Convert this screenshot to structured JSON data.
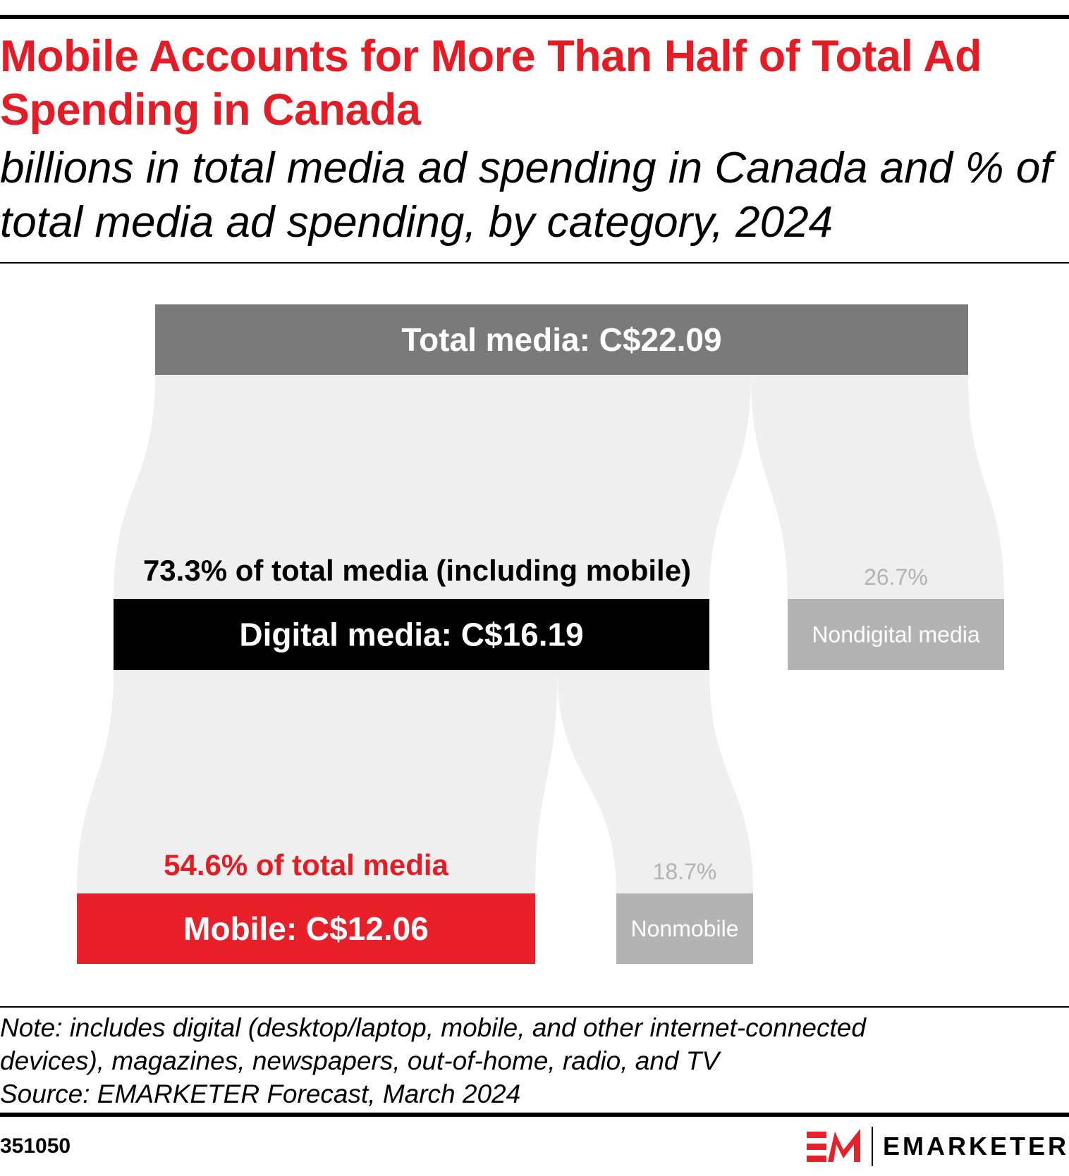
{
  "title": "Mobile Accounts for More Than Half of Total Ad Spending in Canada",
  "subtitle": "billions in total media ad spending in Canada and % of total media ad spending, by category, 2024",
  "chart_data": {
    "type": "sankey",
    "currency": "C$",
    "nodes": [
      {
        "id": "total",
        "label": "Total media: C$22.09",
        "value": 22.09,
        "color": "#7a7a7a"
      },
      {
        "id": "digital",
        "label": "Digital media: C$16.19",
        "value": 16.19,
        "share_label": "73.3% of total media (including mobile)",
        "share": 73.3,
        "color": "#000000"
      },
      {
        "id": "nondigital",
        "label": "Nondigital media",
        "share_label": "26.7%",
        "share": 26.7,
        "color": "#b3b3b3"
      },
      {
        "id": "mobile",
        "label": "Mobile: C$12.06",
        "value": 12.06,
        "share_label": "54.6% of total media",
        "share": 54.6,
        "color": "#e8202a"
      },
      {
        "id": "nonmobile",
        "label": "Nonmobile",
        "share_label": "18.7%",
        "share": 18.7,
        "color": "#b3b3b3"
      }
    ],
    "links": [
      {
        "from": "total",
        "to": "digital",
        "share": 73.3
      },
      {
        "from": "total",
        "to": "nondigital",
        "share": 26.7
      },
      {
        "from": "digital",
        "to": "mobile",
        "share": 54.6
      },
      {
        "from": "digital",
        "to": "nonmobile",
        "share": 18.7
      }
    ],
    "flow_color": "#efefef"
  },
  "footer": {
    "note_line1": "Note: includes digital (desktop/laptop, mobile, and other internet-connected",
    "note_line2": "devices), magazines, newspapers, out-of-home, radio, and TV",
    "source": "Source: EMARKETER Forecast, March 2024",
    "chart_id": "351050",
    "logo_text": "EMARKETER"
  }
}
